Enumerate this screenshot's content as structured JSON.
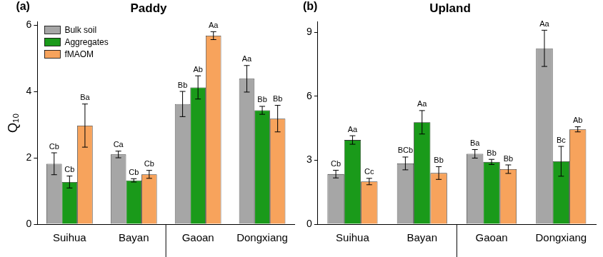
{
  "chart_data": [
    {
      "type": "bar",
      "panel": "(a)",
      "title": "Paddy",
      "ylabel": "Q₁₀",
      "categories": [
        "Suihua",
        "Bayan",
        "Gaoan",
        "Dongxiang"
      ],
      "ylim": [
        0,
        6.1
      ],
      "yticks": [
        0,
        2,
        4,
        6
      ],
      "grid": false,
      "legend": "upper left",
      "series": [
        {
          "name": "Bulk soil",
          "color": "#a6a6a6",
          "values": [
            1.82,
            2.1,
            3.62,
            4.38
          ],
          "errors": [
            0.33,
            0.1,
            0.38,
            0.4
          ],
          "letters": [
            "Cb",
            "Ca",
            "Bb",
            "Aa"
          ]
        },
        {
          "name": "Aggregates",
          "color": "#1a9a1a",
          "values": [
            1.27,
            1.32,
            4.12,
            3.43
          ],
          "errors": [
            0.18,
            0.05,
            0.35,
            0.12
          ],
          "letters": [
            "Cb",
            "Cb",
            "Ab",
            "Bb"
          ]
        },
        {
          "name": "fMAOM",
          "color": "#f7a35c",
          "values": [
            2.97,
            1.5,
            5.68,
            3.18
          ],
          "errors": [
            0.65,
            0.12,
            0.12,
            0.4
          ],
          "letters": [
            "Ba",
            "Cb",
            "Aa",
            "Bb"
          ]
        }
      ]
    },
    {
      "type": "bar",
      "panel": "(b)",
      "title": "Upland",
      "categories": [
        "Suihua",
        "Bayan",
        "Gaoan",
        "Dongxiang"
      ],
      "ylim": [
        0,
        9.5
      ],
      "yticks": [
        0,
        3,
        6,
        9
      ],
      "grid": false,
      "series": [
        {
          "name": "Bulk soil",
          "color": "#a6a6a6",
          "values": [
            2.35,
            2.85,
            3.3,
            8.25
          ],
          "errors": [
            0.18,
            0.3,
            0.2,
            0.85
          ],
          "letters": [
            "Cb",
            "BCb",
            "Ba",
            "Aa"
          ]
        },
        {
          "name": "Aggregates",
          "color": "#1a9a1a",
          "values": [
            3.95,
            4.78,
            2.92,
            2.95
          ],
          "errors": [
            0.2,
            0.55,
            0.12,
            0.7
          ],
          "letters": [
            "Aa",
            "Aa",
            "Bb",
            "Bc"
          ]
        },
        {
          "name": "fMAOM",
          "color": "#f7a35c",
          "values": [
            2.0,
            2.4,
            2.58,
            4.45
          ],
          "errors": [
            0.15,
            0.3,
            0.2,
            0.12
          ],
          "letters": [
            "Cc",
            "Bb",
            "Bb",
            "Ab"
          ]
        }
      ]
    }
  ]
}
